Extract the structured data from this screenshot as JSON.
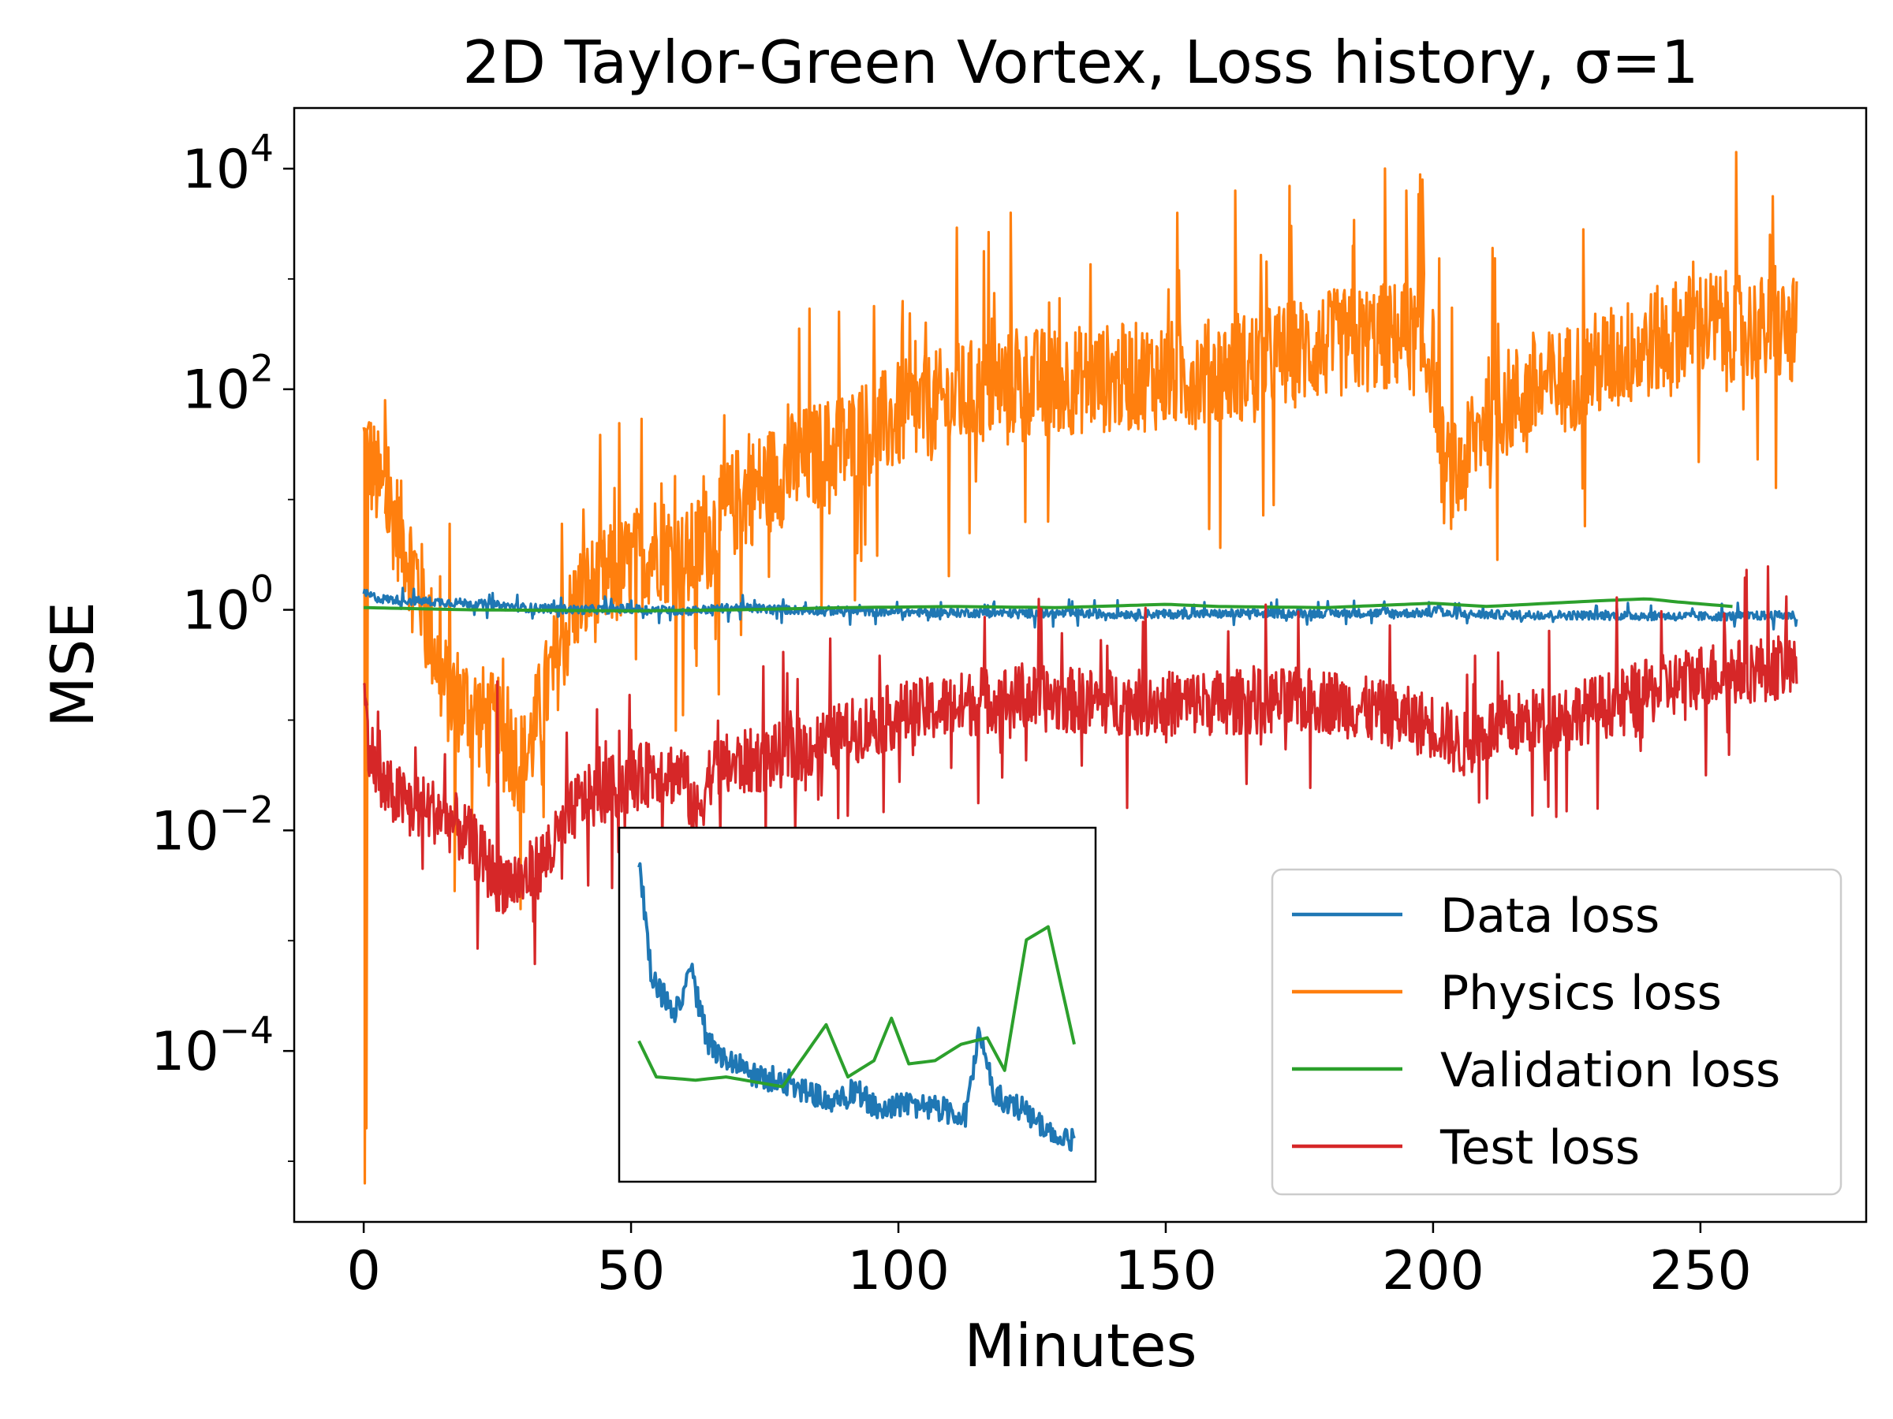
{
  "chart_data": {
    "type": "line",
    "title": "2D Taylor-Green Vortex, Loss history, σ=1",
    "xlabel": "Minutes",
    "ylabel": "MSE",
    "yscale": "log",
    "xlim": [
      -13,
      281
    ],
    "ylim_exp": [
      -5.55,
      4.55
    ],
    "x_ticks": [
      0,
      50,
      100,
      150,
      200,
      250
    ],
    "y_ticks": [
      {
        "base": "10",
        "exp": "4",
        "value_exp": 4
      },
      {
        "base": "10",
        "exp": "2",
        "value_exp": 2
      },
      {
        "base": "10",
        "exp": "0",
        "value_exp": 0
      },
      {
        "base": "10",
        "exp": "−2",
        "value_exp": -2
      },
      {
        "base": "10",
        "exp": "−4",
        "value_exp": -4
      }
    ],
    "grid": false,
    "legend_position": "lower-right",
    "series": [
      {
        "name": "Data loss",
        "color": "#1f77b4",
        "points_log10": [
          [
            0,
            0.15
          ],
          [
            3,
            0.1
          ],
          [
            10,
            0.08
          ],
          [
            20,
            0.06
          ],
          [
            30,
            0.02
          ],
          [
            40,
            0.0
          ],
          [
            50,
            0.01
          ],
          [
            60,
            -0.01
          ],
          [
            70,
            0.02
          ],
          [
            80,
            0.0
          ],
          [
            100,
            -0.02
          ],
          [
            120,
            -0.03
          ],
          [
            150,
            -0.04
          ],
          [
            180,
            -0.03
          ],
          [
            200,
            -0.03
          ],
          [
            201,
            0.05
          ],
          [
            202,
            -0.04
          ],
          [
            230,
            -0.05
          ],
          [
            250,
            -0.06
          ],
          [
            268,
            -0.05
          ]
        ],
        "noise_amp": 0.04
      },
      {
        "name": "Physics loss",
        "color": "#ff7f0e",
        "points_log10": [
          [
            0,
            1.5
          ],
          [
            3,
            1.1
          ],
          [
            6,
            0.8
          ],
          [
            10,
            0.3
          ],
          [
            15,
            -0.7
          ],
          [
            20,
            -0.9
          ],
          [
            25,
            -1.1
          ],
          [
            30,
            -1.4
          ],
          [
            35,
            -0.6
          ],
          [
            40,
            0.1
          ],
          [
            50,
            0.4
          ],
          [
            55,
            0.6
          ],
          [
            60,
            0.4
          ],
          [
            65,
            0.7
          ],
          [
            70,
            1.0
          ],
          [
            80,
            1.3
          ],
          [
            90,
            1.5
          ],
          [
            100,
            1.75
          ],
          [
            120,
            2.05
          ],
          [
            140,
            2.1
          ],
          [
            160,
            2.15
          ],
          [
            180,
            2.4
          ],
          [
            195,
            2.5
          ],
          [
            200,
            2.25
          ],
          [
            202,
            1.25
          ],
          [
            205,
            1.2
          ],
          [
            210,
            1.8
          ],
          [
            230,
            2.2
          ],
          [
            250,
            2.6
          ],
          [
            268,
            2.5
          ]
        ],
        "noise_amp": 0.5,
        "spikes": [
          [
            1,
            1.7
          ],
          [
            4,
            1.9
          ],
          [
            121,
            3.6
          ],
          [
            163,
            3.8
          ],
          [
            185,
            3.3
          ],
          [
            191,
            4.0
          ],
          [
            195,
            3.8
          ],
          [
            198,
            3.9
          ],
          [
            263,
            3.4
          ]
        ],
        "dips": [
          [
            0.2,
            -5.2
          ],
          [
            0.5,
            -4.7
          ],
          [
            17,
            -2.55
          ],
          [
            62,
            -0.35
          ],
          [
            128,
            0.8
          ],
          [
            205,
            1.05
          ]
        ]
      },
      {
        "name": "Validation loss",
        "color": "#2ca02c",
        "points_log10": [
          [
            0,
            0.02
          ],
          [
            20,
            0.0
          ],
          [
            50,
            -0.01
          ],
          [
            70,
            0.0
          ],
          [
            90,
            0.02
          ],
          [
            110,
            0.03
          ],
          [
            130,
            0.02
          ],
          [
            150,
            0.05
          ],
          [
            160,
            0.03
          ],
          [
            180,
            0.02
          ],
          [
            200,
            0.06
          ],
          [
            210,
            0.03
          ],
          [
            230,
            0.08
          ],
          [
            240,
            0.1
          ],
          [
            246,
            0.07
          ],
          [
            256,
            0.03
          ]
        ],
        "noise_amp": 0.0
      },
      {
        "name": "Test loss",
        "color": "#d62728",
        "points_log10": [
          [
            0,
            -0.8
          ],
          [
            1,
            -1.2
          ],
          [
            3,
            -1.6
          ],
          [
            8,
            -1.75
          ],
          [
            15,
            -1.85
          ],
          [
            20,
            -2.1
          ],
          [
            25,
            -2.45
          ],
          [
            30,
            -2.45
          ],
          [
            35,
            -2.2
          ],
          [
            40,
            -1.75
          ],
          [
            50,
            -1.55
          ],
          [
            55,
            -1.45
          ],
          [
            60,
            -1.5
          ],
          [
            62,
            -1.9
          ],
          [
            65,
            -1.45
          ],
          [
            70,
            -1.4
          ],
          [
            80,
            -1.3
          ],
          [
            100,
            -0.95
          ],
          [
            120,
            -0.8
          ],
          [
            150,
            -0.85
          ],
          [
            180,
            -0.82
          ],
          [
            200,
            -1.05
          ],
          [
            202,
            -1.1
          ],
          [
            205,
            -1.25
          ],
          [
            210,
            -1.1
          ],
          [
            230,
            -0.9
          ],
          [
            250,
            -0.6
          ],
          [
            268,
            -0.5
          ]
        ],
        "noise_amp": 0.3,
        "spikes": [
          [
            0.3,
            -0.8
          ],
          [
            25,
            -0.65
          ]
        ]
      }
    ],
    "inset": {
      "series": [
        {
          "name": "Data loss",
          "color": "#1f77b4",
          "points_rel": [
            [
              0.0,
              0.04
            ],
            [
              0.03,
              0.42
            ],
            [
              0.08,
              0.52
            ],
            [
              0.12,
              0.4
            ],
            [
              0.16,
              0.62
            ],
            [
              0.22,
              0.68
            ],
            [
              0.28,
              0.72
            ],
            [
              0.35,
              0.74
            ],
            [
              0.4,
              0.78
            ],
            [
              0.45,
              0.8
            ],
            [
              0.5,
              0.76
            ],
            [
              0.55,
              0.82
            ],
            [
              0.62,
              0.8
            ],
            [
              0.7,
              0.82
            ],
            [
              0.75,
              0.84
            ],
            [
              0.78,
              0.6
            ],
            [
              0.82,
              0.78
            ],
            [
              0.88,
              0.82
            ],
            [
              0.93,
              0.88
            ],
            [
              0.97,
              0.93
            ],
            [
              1.0,
              0.9
            ]
          ],
          "noise_amp": 0.04
        },
        {
          "name": "Validation loss",
          "color": "#2ca02c",
          "points_rel": [
            [
              0.0,
              0.61
            ],
            [
              0.04,
              0.72
            ],
            [
              0.13,
              0.73
            ],
            [
              0.2,
              0.72
            ],
            [
              0.33,
              0.75
            ],
            [
              0.43,
              0.56
            ],
            [
              0.48,
              0.72
            ],
            [
              0.54,
              0.67
            ],
            [
              0.58,
              0.54
            ],
            [
              0.62,
              0.68
            ],
            [
              0.68,
              0.67
            ],
            [
              0.74,
              0.62
            ],
            [
              0.8,
              0.6
            ],
            [
              0.84,
              0.7
            ],
            [
              0.89,
              0.3
            ],
            [
              0.94,
              0.26
            ],
            [
              1.0,
              0.62
            ]
          ],
          "noise_amp": 0.0
        }
      ]
    }
  }
}
